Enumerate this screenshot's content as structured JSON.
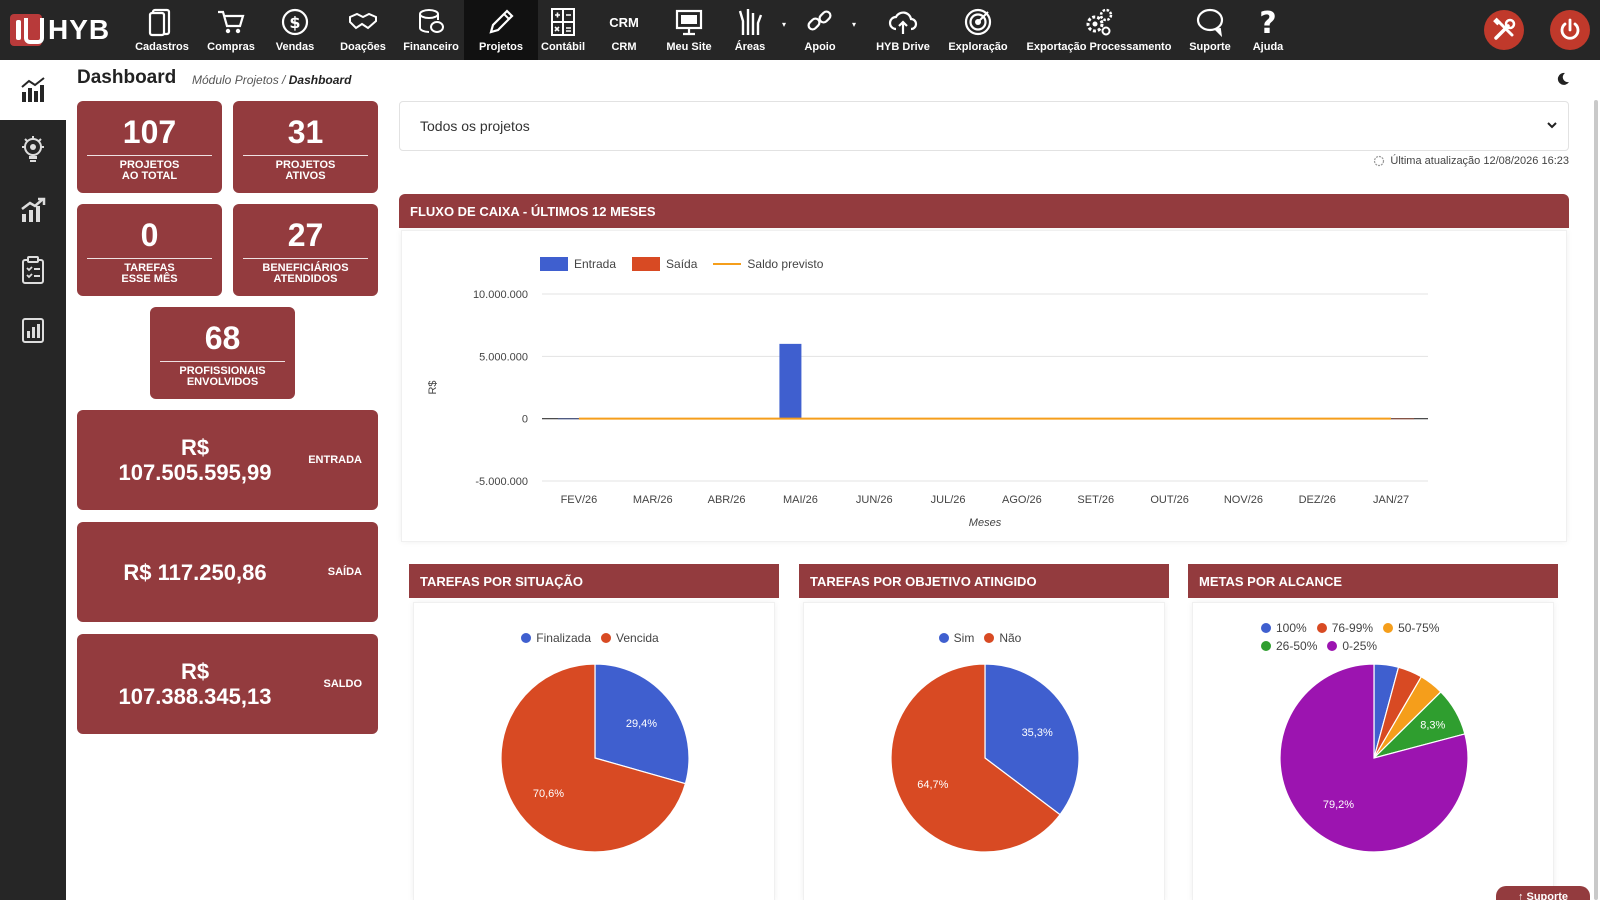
{
  "app": {
    "logo_text": "HYB"
  },
  "nav": [
    {
      "label": "Cadastros",
      "icon": "file-icon"
    },
    {
      "label": "Compras",
      "icon": "cart-icon"
    },
    {
      "label": "Vendas",
      "icon": "dollar-icon"
    },
    {
      "label": "Doações",
      "icon": "handshake-icon"
    },
    {
      "label": "Financeiro",
      "icon": "coins-icon"
    },
    {
      "label": "Projetos",
      "icon": "pencil-icon",
      "active": true
    },
    {
      "label": "Contábil",
      "icon": "calculator-icon"
    },
    {
      "label": "CRM",
      "icon": "crm-icon",
      "icon_text": "CRM"
    },
    {
      "label": "Meu Site",
      "icon": "monitor-icon"
    },
    {
      "label": "Áreas",
      "icon": "hands-icon"
    },
    {
      "label": "Apoio",
      "icon": "link-icon"
    },
    {
      "label": "HYB Drive",
      "icon": "cloud-upload-icon"
    },
    {
      "label": "Exploração",
      "icon": "target-icon"
    },
    {
      "label": "Exportação Processamento",
      "icon": "gears-icon"
    },
    {
      "label": "Suporte",
      "icon": "chat-icon"
    },
    {
      "label": "Ajuda",
      "icon": "question-icon"
    }
  ],
  "sidebar": [
    {
      "icon": "dashboard-chart-icon",
      "active": true
    },
    {
      "icon": "lightbulb-gear-icon"
    },
    {
      "icon": "growth-chart-icon"
    },
    {
      "icon": "clipboard-list-icon"
    },
    {
      "icon": "report-icon"
    }
  ],
  "header": {
    "title": "Dashboard",
    "breadcrumb_parent": "Módulo Projetos /",
    "breadcrumb_current": "Dashboard"
  },
  "stats": {
    "projetos_total": {
      "value": "107",
      "label_1": "PROJETOS",
      "label_2": "AO TOTAL"
    },
    "projetos_ativos": {
      "value": "31",
      "label_1": "PROJETOS",
      "label_2": "ATIVOS"
    },
    "tarefas_mes": {
      "value": "0",
      "label_1": "TAREFAS",
      "label_2": "ESSE MÊS"
    },
    "beneficiarios": {
      "value": "27",
      "label_1": "BENEFICIÁRIOS",
      "label_2": "ATENDIDOS"
    },
    "profissionais": {
      "value": "68",
      "label_1": "PROFISSIONAIS",
      "label_2": "ENVOLVIDOS"
    }
  },
  "finance": {
    "entrada": {
      "amount_1": "R$",
      "amount_2": "107.505.595,99",
      "label": "ENTRADA"
    },
    "saida": {
      "amount": "R$ 117.250,86",
      "label": "SAÍDA"
    },
    "saldo": {
      "amount_1": "R$",
      "amount_2": "107.388.345,13",
      "label": "SALDO"
    }
  },
  "filter": {
    "selected": "Todos os projetos",
    "last_update": "Última atualização 12/08/2026 16:23"
  },
  "panels": {
    "cashflow": "FLUXO DE CAIXA - ÚLTIMOS 12 MESES",
    "tarefas_situacao": "TAREFAS POR SITUAÇÃO",
    "tarefas_objetivo": "TAREFAS POR OBJETIVO ATINGIDO",
    "metas_alcance": "METAS POR ALCANCE"
  },
  "support_tab": "↑ Suporte",
  "colors": {
    "brand": "#933b3e",
    "topbar": "#262626",
    "blue": "#3f5fcf",
    "red": "#d84a23",
    "orange": "#f59e1b",
    "green": "#2f9e2f",
    "purple": "#9c14b0"
  },
  "chart_data": [
    {
      "type": "bar",
      "title": "FLUXO DE CAIXA - ÚLTIMOS 12 MESES",
      "xlabel": "Meses",
      "ylabel": "R$",
      "categories": [
        "FEV/26",
        "MAR/26",
        "ABR/26",
        "MAI/26",
        "JUN/26",
        "JUL/26",
        "AGO/26",
        "SET/26",
        "OUT/26",
        "NOV/26",
        "DEZ/26",
        "JAN/27"
      ],
      "yticks": [
        "10.000.000",
        "5.000.000",
        "0",
        "-5.000.000"
      ],
      "ylim": [
        -5000000,
        10000000
      ],
      "legend_position": "top-left",
      "series": [
        {
          "name": "Entrada",
          "color": "#3f5fcf",
          "kind": "bar",
          "values": [
            0,
            0,
            0,
            6000000,
            0,
            0,
            0,
            0,
            0,
            0,
            0,
            0
          ]
        },
        {
          "name": "Saída",
          "color": "#d84a23",
          "kind": "bar",
          "values": [
            0,
            0,
            0,
            0,
            0,
            0,
            0,
            0,
            0,
            0,
            0,
            0
          ]
        },
        {
          "name": "Saldo previsto",
          "color": "#f59e1b",
          "kind": "line",
          "values": [
            0,
            0,
            0,
            0,
            0,
            0,
            0,
            0,
            0,
            0,
            0,
            0
          ]
        }
      ]
    },
    {
      "type": "pie",
      "title": "TAREFAS POR SITUAÇÃO",
      "legend_position": "top",
      "slices": [
        {
          "label": "Finalizada",
          "value": 29.4,
          "text": "29,4%",
          "color": "#3f5fcf"
        },
        {
          "label": "Vencida",
          "value": 70.6,
          "text": "70,6%",
          "color": "#d84a23"
        }
      ]
    },
    {
      "type": "pie",
      "title": "TAREFAS POR OBJETIVO ATINGIDO",
      "legend_position": "top",
      "slices": [
        {
          "label": "Sim",
          "value": 35.3,
          "text": "35,3%",
          "color": "#3f5fcf"
        },
        {
          "label": "Não",
          "value": 64.7,
          "text": "64,7%",
          "color": "#d84a23"
        }
      ]
    },
    {
      "type": "pie",
      "title": "METAS POR ALCANCE",
      "legend_position": "top",
      "slices": [
        {
          "label": "100%",
          "value": 4.2,
          "text": "",
          "color": "#3f5fcf"
        },
        {
          "label": "76-99%",
          "value": 4.2,
          "text": "",
          "color": "#d84a23"
        },
        {
          "label": "50-75%",
          "value": 4.2,
          "text": "",
          "color": "#f59e1b"
        },
        {
          "label": "26-50%",
          "value": 8.3,
          "text": "8,3%",
          "color": "#2f9e2f"
        },
        {
          "label": "0-25%",
          "value": 79.2,
          "text": "79,2%",
          "color": "#9c14b0"
        }
      ]
    }
  ]
}
